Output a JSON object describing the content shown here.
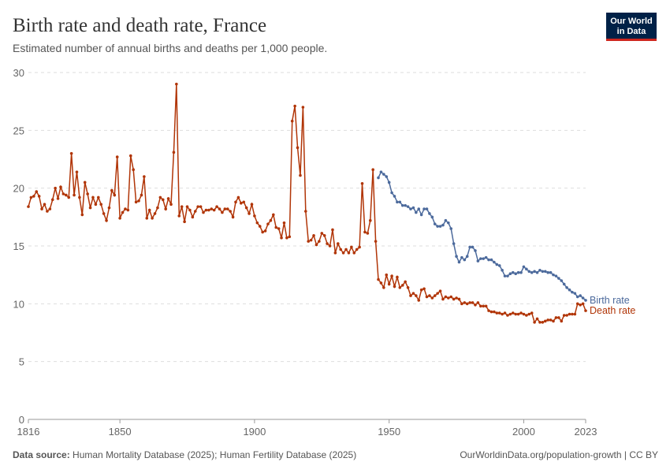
{
  "chart_data": {
    "type": "line",
    "title": "Birth rate and death rate, France",
    "subtitle": "Estimated number of annual births and deaths per 1,000 people.",
    "logo": [
      "Our World",
      "in Data"
    ],
    "source_label": "Data source:",
    "source": "Human Mortality Database (2025); Human Fertility Database (2025)",
    "credit": "OurWorldinData.org/population-growth | CC BY",
    "xlim": [
      1816,
      2023
    ],
    "xticks": [
      1816,
      1850,
      1900,
      1950,
      2000,
      2023
    ],
    "ylim": [
      0,
      30
    ],
    "yticks": [
      0,
      5,
      10,
      15,
      20,
      25,
      30
    ],
    "grid": true,
    "series": [
      {
        "name": "Birth rate",
        "color": "#4c6a9c",
        "x": [
          1946,
          1947,
          1948,
          1949,
          1950,
          1951,
          1952,
          1953,
          1954,
          1955,
          1956,
          1957,
          1958,
          1959,
          1960,
          1961,
          1962,
          1963,
          1964,
          1965,
          1966,
          1967,
          1968,
          1969,
          1970,
          1971,
          1972,
          1973,
          1974,
          1975,
          1976,
          1977,
          1978,
          1979,
          1980,
          1981,
          1982,
          1983,
          1984,
          1985,
          1986,
          1987,
          1988,
          1989,
          1990,
          1991,
          1992,
          1993,
          1994,
          1995,
          1996,
          1997,
          1998,
          1999,
          2000,
          2001,
          2002,
          2003,
          2004,
          2005,
          2006,
          2007,
          2008,
          2009,
          2010,
          2011,
          2012,
          2013,
          2014,
          2015,
          2016,
          2017,
          2018,
          2019,
          2020,
          2021,
          2022,
          2023
        ],
        "values": [
          20.9,
          21.4,
          21.2,
          21.0,
          20.5,
          19.6,
          19.3,
          18.8,
          18.8,
          18.5,
          18.5,
          18.4,
          18.2,
          18.3,
          17.9,
          18.2,
          17.7,
          18.2,
          18.2,
          17.8,
          17.5,
          16.9,
          16.7,
          16.7,
          16.8,
          17.2,
          17.0,
          16.5,
          15.2,
          14.1,
          13.6,
          14.0,
          13.8,
          14.1,
          14.9,
          14.9,
          14.6,
          13.7,
          13.9,
          13.9,
          14.0,
          13.8,
          13.8,
          13.6,
          13.4,
          13.3,
          12.9,
          12.4,
          12.4,
          12.6,
          12.7,
          12.6,
          12.7,
          12.7,
          13.2,
          13.0,
          12.8,
          12.7,
          12.8,
          12.7,
          12.9,
          12.8,
          12.8,
          12.7,
          12.7,
          12.5,
          12.4,
          12.2,
          12.0,
          11.7,
          11.4,
          11.2,
          11.0,
          10.9,
          10.6,
          10.7,
          10.5,
          10.3
        ]
      },
      {
        "name": "Death rate",
        "color": "#b13507",
        "x": [
          1816,
          1817,
          1818,
          1819,
          1820,
          1821,
          1822,
          1823,
          1824,
          1825,
          1826,
          1827,
          1828,
          1829,
          1830,
          1831,
          1832,
          1833,
          1834,
          1835,
          1836,
          1837,
          1838,
          1839,
          1840,
          1841,
          1842,
          1843,
          1844,
          1845,
          1846,
          1847,
          1848,
          1849,
          1850,
          1851,
          1852,
          1853,
          1854,
          1855,
          1856,
          1857,
          1858,
          1859,
          1860,
          1861,
          1862,
          1863,
          1864,
          1865,
          1866,
          1867,
          1868,
          1869,
          1870,
          1871,
          1872,
          1873,
          1874,
          1875,
          1876,
          1877,
          1878,
          1879,
          1880,
          1881,
          1882,
          1883,
          1884,
          1885,
          1886,
          1887,
          1888,
          1889,
          1890,
          1891,
          1892,
          1893,
          1894,
          1895,
          1896,
          1897,
          1898,
          1899,
          1900,
          1901,
          1902,
          1903,
          1904,
          1905,
          1906,
          1907,
          1908,
          1909,
          1910,
          1911,
          1912,
          1913,
          1914,
          1915,
          1916,
          1917,
          1918,
          1919,
          1920,
          1921,
          1922,
          1923,
          1924,
          1925,
          1926,
          1927,
          1928,
          1929,
          1930,
          1931,
          1932,
          1933,
          1934,
          1935,
          1936,
          1937,
          1938,
          1939,
          1940,
          1941,
          1942,
          1943,
          1944,
          1945,
          1946,
          1947,
          1948,
          1949,
          1950,
          1951,
          1952,
          1953,
          1954,
          1955,
          1956,
          1957,
          1958,
          1959,
          1960,
          1961,
          1962,
          1963,
          1964,
          1965,
          1966,
          1967,
          1968,
          1969,
          1970,
          1971,
          1972,
          1973,
          1974,
          1975,
          1976,
          1977,
          1978,
          1979,
          1980,
          1981,
          1982,
          1983,
          1984,
          1985,
          1986,
          1987,
          1988,
          1989,
          1990,
          1991,
          1992,
          1993,
          1994,
          1995,
          1996,
          1997,
          1998,
          1999,
          2000,
          2001,
          2002,
          2003,
          2004,
          2005,
          2006,
          2007,
          2008,
          2009,
          2010,
          2011,
          2012,
          2013,
          2014,
          2015,
          2016,
          2017,
          2018,
          2019,
          2020,
          2021,
          2022,
          2023
        ],
        "values": [
          18.4,
          19.2,
          19.3,
          19.7,
          19.3,
          18.2,
          18.6,
          18.0,
          18.2,
          19.0,
          20.0,
          19.1,
          20.1,
          19.5,
          19.4,
          19.2,
          23.0,
          19.4,
          21.4,
          19.2,
          17.7,
          20.5,
          19.5,
          18.3,
          19.2,
          18.6,
          19.2,
          18.6,
          17.8,
          17.2,
          18.3,
          19.8,
          19.4,
          22.7,
          17.4,
          17.9,
          18.2,
          18.1,
          22.8,
          21.6,
          18.8,
          18.9,
          19.4,
          21.0,
          17.4,
          18.1,
          17.4,
          17.8,
          18.3,
          19.2,
          19.0,
          18.2,
          19.1,
          18.6,
          23.1,
          29.0,
          17.6,
          18.4,
          17.1,
          18.4,
          18.1,
          17.5,
          18.0,
          18.4,
          18.4,
          17.9,
          18.1,
          18.1,
          18.2,
          18.1,
          18.4,
          18.2,
          17.9,
          18.2,
          18.2,
          18.0,
          17.5,
          18.8,
          19.2,
          18.7,
          18.8,
          18.3,
          17.8,
          18.6,
          17.6,
          17.0,
          16.7,
          16.2,
          16.3,
          16.9,
          17.2,
          17.7,
          16.6,
          16.5,
          15.7,
          17.0,
          15.7,
          15.8,
          25.8,
          27.1,
          23.5,
          21.1,
          27.0,
          18.0,
          15.4,
          15.5,
          15.9,
          15.1,
          15.4,
          16.1,
          15.9,
          15.2,
          15.0,
          16.4,
          14.4,
          15.2,
          14.7,
          14.4,
          14.7,
          14.4,
          14.9,
          14.4,
          14.7,
          14.9,
          20.4,
          16.2,
          16.1,
          17.2,
          21.6,
          15.4,
          12.1,
          11.8,
          11.4,
          12.5,
          11.7,
          12.4,
          11.5,
          12.3,
          11.4,
          11.6,
          11.9,
          11.4,
          10.7,
          10.9,
          10.7,
          10.3,
          11.2,
          11.3,
          10.6,
          10.7,
          10.5,
          10.7,
          10.9,
          11.1,
          10.4,
          10.6,
          10.5,
          10.6,
          10.4,
          10.5,
          10.4,
          10.0,
          10.1,
          10.0,
          10.1,
          10.1,
          9.9,
          10.1,
          9.8,
          9.8,
          9.8,
          9.4,
          9.3,
          9.3,
          9.2,
          9.2,
          9.1,
          9.2,
          9.0,
          9.1,
          9.2,
          9.1,
          9.1,
          9.2,
          9.1,
          9.0,
          9.1,
          9.2,
          8.4,
          8.7,
          8.4,
          8.4,
          8.5,
          8.6,
          8.6,
          8.5,
          8.8,
          8.8,
          8.5,
          9.0,
          9.0,
          9.1,
          9.1,
          9.1,
          10.0,
          9.9,
          10.0,
          9.4
        ]
      }
    ]
  }
}
